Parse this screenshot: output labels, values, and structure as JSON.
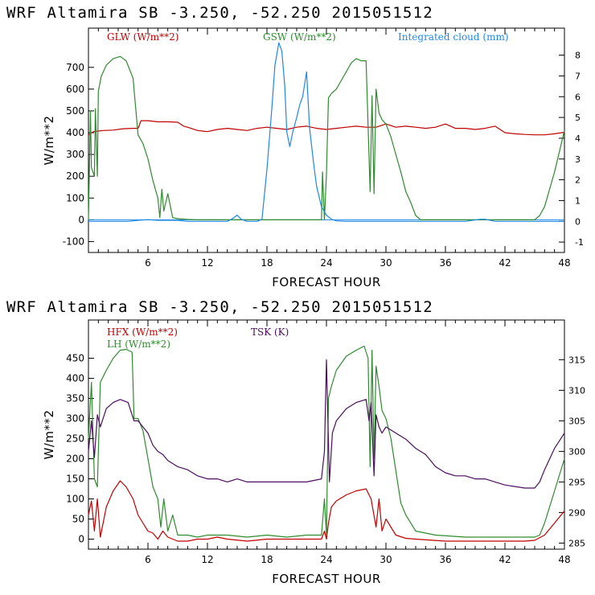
{
  "chart_data": [
    {
      "type": "line",
      "title": "WRF   Altamira  SB  -3.250, -52.250  2015051512",
      "xlabel": "FORECAST HOUR",
      "ylabel": "W/m**2",
      "xlim": [
        0,
        48
      ],
      "ylim": [
        -150,
        880
      ],
      "ylim_right": [
        -1.5,
        9.3
      ],
      "x_ticks": [
        "6",
        "12",
        "18",
        "24",
        "30",
        "36",
        "42",
        "48"
      ],
      "y_ticks": [
        "700",
        "600",
        "500",
        "400",
        "300",
        "200",
        "100",
        "0",
        "-100"
      ],
      "y_ticks_right": [
        "8",
        "7",
        "6",
        "5",
        "4",
        "3",
        "2",
        "1",
        "0",
        "-1"
      ],
      "series": [
        {
          "name": "GLW (W/m**2)",
          "color": "#c00000",
          "axis": "left",
          "x": [
            0,
            0.5,
            1.5,
            2.5,
            3.5,
            4.5,
            5,
            5.3,
            6,
            7,
            8,
            9,
            9.6,
            10,
            11,
            12,
            13,
            14,
            15,
            16,
            17,
            18,
            19,
            20,
            21,
            22,
            23,
            24,
            25,
            26,
            27,
            28,
            29,
            30,
            31,
            32,
            33,
            34,
            35,
            36,
            37,
            38,
            39,
            40,
            41,
            42,
            43,
            44,
            45,
            46,
            47,
            48
          ],
          "y": [
            390,
            405,
            410,
            412,
            418,
            420,
            420,
            455,
            455,
            450,
            450,
            448,
            430,
            425,
            410,
            405,
            415,
            420,
            415,
            410,
            420,
            425,
            420,
            415,
            425,
            430,
            420,
            415,
            420,
            425,
            430,
            425,
            425,
            440,
            425,
            430,
            425,
            420,
            425,
            440,
            420,
            420,
            415,
            420,
            430,
            400,
            395,
            392,
            390,
            390,
            395,
            402
          ]
        },
        {
          "name": "GSW (W/m**2)",
          "color": "#2e8b2e",
          "axis": "left",
          "x": [
            0,
            0.2,
            0.3,
            0.6,
            0.7,
            0.9,
            1,
            1.3,
            1.8,
            2.5,
            3.2,
            3.8,
            4.5,
            5,
            5.5,
            6,
            6.5,
            7,
            7.2,
            7.4,
            7.6,
            8,
            8.5,
            9,
            10,
            11,
            12,
            13,
            14,
            15,
            16,
            17,
            18,
            19,
            20,
            21,
            22,
            23,
            23.5,
            23.6,
            23.8,
            24,
            24.2,
            24.5,
            25,
            25.5,
            26,
            26.5,
            27,
            27.5,
            28,
            28.2,
            28.4,
            28.6,
            28.8,
            29,
            29.3,
            29.6,
            30,
            30.5,
            31,
            31.5,
            32,
            32.5,
            33,
            33.5,
            34,
            36,
            38,
            40,
            42,
            44,
            45,
            45.5,
            46,
            47,
            48
          ],
          "y": [
            0,
            500,
            240,
            200,
            510,
            200,
            590,
            660,
            710,
            740,
            750,
            730,
            650,
            390,
            350,
            280,
            180,
            100,
            10,
            140,
            40,
            120,
            10,
            5,
            2,
            0,
            0,
            0,
            0,
            0,
            0,
            0,
            0,
            0,
            0,
            0,
            0,
            0,
            0,
            220,
            0,
            210,
            560,
            580,
            600,
            640,
            680,
            720,
            740,
            730,
            730,
            430,
            130,
            570,
            120,
            600,
            490,
            460,
            440,
            380,
            300,
            220,
            130,
            80,
            20,
            0,
            0,
            0,
            0,
            0,
            0,
            0,
            0,
            20,
            60,
            220,
            410
          ]
        },
        {
          "name": "Integrated cloud (mm)",
          "color": "#1e88e5",
          "axis": "right",
          "x": [
            0,
            4,
            5,
            6,
            7,
            9,
            10,
            14,
            14.6,
            15,
            15.4,
            16,
            17,
            17.5,
            18,
            18.5,
            18.8,
            19.2,
            19.5,
            19.8,
            20,
            20.3,
            20.6,
            21,
            21.3,
            21.6,
            22,
            22.3,
            22.7,
            23,
            23.5,
            24,
            24.5,
            25,
            26,
            30,
            38,
            39.5,
            40,
            41,
            48
          ],
          "y": [
            0,
            0,
            0.05,
            0.08,
            0.05,
            0.05,
            0,
            0,
            0.15,
            0.3,
            0.1,
            0,
            0,
            0.1,
            2.5,
            5.5,
            7.5,
            8.6,
            8.2,
            6.5,
            4.3,
            3.6,
            4.3,
            5.0,
            5.6,
            6.0,
            7.2,
            4.5,
            2.8,
            1.7,
            0.7,
            0.3,
            0.1,
            0.02,
            0,
            0,
            0,
            0.1,
            0.1,
            0,
            0
          ]
        }
      ],
      "legend": [
        {
          "label": "GLW (W/m**2)",
          "color": "#c00000"
        },
        {
          "label": "GSW (W/m**2)",
          "color": "#2e8b2e"
        },
        {
          "label": "Integrated cloud (mm)",
          "color": "#1e88e5"
        }
      ]
    },
    {
      "type": "line",
      "title": "WRF   Altamira  SB  -3.250, -52.250  2015051512",
      "xlabel": "FORECAST HOUR",
      "ylabel": "W/m**2",
      "xlim": [
        0,
        48
      ],
      "ylim": [
        -25,
        545
      ],
      "ylim_right": [
        284,
        321.5
      ],
      "x_ticks": [
        "6",
        "12",
        "18",
        "24",
        "30",
        "36",
        "42",
        "48"
      ],
      "y_ticks": [
        "450",
        "400",
        "350",
        "300",
        "250",
        "200",
        "150",
        "100",
        "50",
        "0"
      ],
      "y_ticks_right": [
        "315",
        "310",
        "305",
        "300",
        "295",
        "290",
        "285"
      ],
      "series": [
        {
          "name": "HFX (W/m**2)",
          "color": "#c00000",
          "axis": "left",
          "x": [
            0,
            0.3,
            0.6,
            0.9,
            1.2,
            1.8,
            2.5,
            3.2,
            3.8,
            4.5,
            5,
            5.5,
            6,
            6.5,
            7,
            7.5,
            8,
            9,
            10,
            11,
            12,
            13,
            14,
            16,
            18,
            20,
            22,
            23.5,
            23.8,
            24,
            24.2,
            24.5,
            25,
            26,
            27,
            28,
            28.5,
            29,
            29.3,
            29.6,
            30,
            31,
            32,
            33,
            36,
            40,
            44,
            45,
            46,
            47,
            48
          ],
          "y": [
            60,
            95,
            20,
            100,
            5,
            80,
            120,
            145,
            130,
            100,
            60,
            40,
            20,
            15,
            0,
            20,
            5,
            -5,
            -5,
            0,
            0,
            5,
            0,
            -5,
            0,
            0,
            0,
            0,
            20,
            0,
            40,
            80,
            95,
            110,
            120,
            125,
            100,
            30,
            100,
            20,
            50,
            10,
            2,
            0,
            -5,
            -5,
            -5,
            -3,
            10,
            40,
            70
          ]
        },
        {
          "name": "LH (W/m**2)",
          "color": "#2e8b2e",
          "axis": "left",
          "x": [
            0,
            0.3,
            0.6,
            0.9,
            1.2,
            1.8,
            2.5,
            3.2,
            3.8,
            4.4,
            4.6,
            5,
            5.5,
            6,
            6.5,
            7,
            7.3,
            7.6,
            8,
            8.5,
            9,
            10,
            11,
            12,
            14,
            16,
            18,
            20,
            22,
            23.5,
            23.8,
            24,
            24.2,
            24.5,
            25,
            26,
            27,
            27.8,
            28.2,
            28.4,
            28.6,
            28.8,
            29,
            29.3,
            29.6,
            30,
            30.5,
            31,
            31.5,
            32,
            33,
            35,
            38,
            42,
            45,
            45.5,
            46,
            47,
            48
          ],
          "y": [
            250,
            390,
            150,
            130,
            390,
            420,
            450,
            470,
            472,
            465,
            300,
            300,
            270,
            200,
            130,
            100,
            30,
            100,
            20,
            60,
            10,
            10,
            5,
            10,
            10,
            5,
            10,
            5,
            10,
            10,
            100,
            10,
            350,
            380,
            420,
            455,
            470,
            480,
            450,
            180,
            470,
            200,
            430,
            380,
            320,
            300,
            250,
            170,
            90,
            60,
            20,
            10,
            5,
            5,
            5,
            10,
            40,
            120,
            200
          ]
        },
        {
          "name": "TSK (K)",
          "color": "#4a0e5c",
          "axis": "right",
          "x": [
            0,
            0.3,
            0.6,
            0.9,
            1.2,
            1.8,
            2.5,
            3.2,
            4,
            4.6,
            5,
            5.5,
            6,
            6.5,
            7,
            7.5,
            8,
            9,
            10,
            11,
            12,
            13,
            14,
            15,
            16,
            17,
            18,
            20,
            22,
            23.5,
            23.8,
            24,
            24.3,
            24.6,
            25,
            25.5,
            26,
            27,
            28,
            28.3,
            28.5,
            28.8,
            29,
            29.3,
            29.6,
            30,
            31,
            32,
            33,
            34,
            35,
            36,
            37,
            38,
            39,
            40,
            41,
            42,
            44,
            45,
            45.5,
            46,
            47,
            48
          ],
          "y": [
            300,
            305,
            299,
            306,
            304,
            307,
            308,
            308.5,
            308,
            305,
            305,
            304,
            303,
            301,
            300,
            299.5,
            298.5,
            297.5,
            297,
            296,
            295.5,
            295.5,
            295,
            295.5,
            295,
            295,
            295,
            295,
            295,
            295.5,
            300,
            315,
            295,
            303,
            305,
            306,
            307,
            308,
            308.5,
            305,
            308,
            296,
            306,
            304,
            303,
            304,
            303,
            302,
            300.5,
            299.5,
            297.5,
            296.5,
            296,
            296,
            295.5,
            295.5,
            295,
            294.5,
            294,
            294,
            295,
            297,
            300.5,
            303
          ]
        }
      ],
      "legend": [
        {
          "label": "HFX (W/m**2)",
          "color": "#c00000"
        },
        {
          "label": "LH  (W/m**2)",
          "color": "#2e8b2e"
        },
        {
          "label": "TSK (K)",
          "color": "#4a0e5c"
        }
      ]
    }
  ]
}
